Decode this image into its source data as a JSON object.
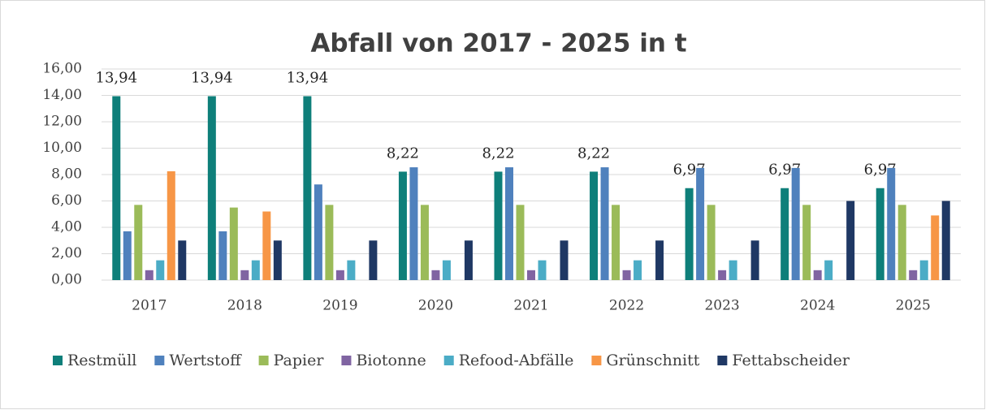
{
  "chart_data": {
    "type": "bar",
    "title": "Abfall von 2017 - 2025 in t",
    "categories": [
      "2017",
      "2018",
      "2019",
      "2020",
      "2021",
      "2022",
      "2023",
      "2024",
      "2025"
    ],
    "series": [
      {
        "name": "Restmüll",
        "color": "#0e7f7a",
        "values": [
          13.94,
          13.94,
          13.94,
          8.22,
          8.22,
          8.22,
          6.97,
          6.97,
          6.97
        ],
        "value_labels": [
          "13,94",
          "13,94",
          "13,94",
          "8,22",
          "8,22",
          "8,22",
          "6,97",
          "6,97",
          "6,97"
        ]
      },
      {
        "name": "Wertstoff",
        "color": "#4f81bd",
        "values": [
          3.7,
          3.7,
          7.25,
          8.55,
          8.55,
          8.55,
          8.5,
          8.5,
          8.5
        ]
      },
      {
        "name": "Papier",
        "color": "#9bbb59",
        "values": [
          5.7,
          5.5,
          5.7,
          5.7,
          5.7,
          5.7,
          5.7,
          5.7,
          5.7
        ]
      },
      {
        "name": "Biotonne",
        "color": "#8064a2",
        "values": [
          0.75,
          0.75,
          0.75,
          0.75,
          0.75,
          0.75,
          0.75,
          0.75,
          0.75
        ]
      },
      {
        "name": "Refood-Abfälle",
        "color": "#4bacc6",
        "values": [
          1.5,
          1.5,
          1.5,
          1.5,
          1.5,
          1.5,
          1.5,
          1.5,
          1.5
        ]
      },
      {
        "name": "Grünschnitt",
        "color": "#f79646",
        "values": [
          8.25,
          5.2,
          null,
          null,
          null,
          null,
          null,
          null,
          4.9
        ]
      },
      {
        "name": "Fettabscheider",
        "color": "#1f3864",
        "values": [
          3,
          3,
          3,
          3,
          3,
          3,
          3,
          6,
          6
        ]
      }
    ],
    "ylim": [
      0,
      16
    ],
    "yticks": [
      {
        "value": 0,
        "label": "0,00"
      },
      {
        "value": 2,
        "label": "2,00"
      },
      {
        "value": 4,
        "label": "4,00"
      },
      {
        "value": 6,
        "label": "6,00"
      },
      {
        "value": 8,
        "label": "8,00"
      },
      {
        "value": 10,
        "label": "10,00"
      },
      {
        "value": 12,
        "label": "12,00"
      },
      {
        "value": 14,
        "label": "14,00"
      },
      {
        "value": 16,
        "label": "16,00"
      }
    ],
    "grid": true,
    "legend": "bottom"
  }
}
